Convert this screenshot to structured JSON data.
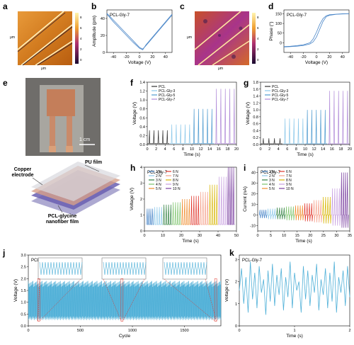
{
  "figure": {
    "panels": {
      "a": {
        "label": "a"
      },
      "b": {
        "label": "b",
        "title": "PCL-Gly-7",
        "xlabel": "Voltage (V)",
        "ylabel": "Amplitude (pm)"
      },
      "c": {
        "label": "c"
      },
      "d": {
        "label": "d",
        "title": "PCL-Gly-7",
        "xlabel": "Voltage (V)",
        "ylabel": "Phase (°)"
      },
      "e": {
        "label": "e",
        "scalebar": "1 cm",
        "layers": [
          "PU film",
          "Copper electrode",
          "PCL-glycine nanofiber film"
        ]
      },
      "f": {
        "label": "f",
        "xlabel": "Time (s)",
        "ylabel": "Voltage (V)"
      },
      "g": {
        "label": "g",
        "xlabel": "Time (s)",
        "ylabel": "Voltage (V)"
      },
      "h": {
        "label": "h",
        "title": "PCL-Gly-7",
        "xlabel": "Time (s)",
        "ylabel": "Voltage (V)"
      },
      "i": {
        "label": "i",
        "title": "PCL-Gly-7",
        "xlabel": "Time (s)",
        "ylabel": "Current (nA)"
      },
      "j": {
        "label": "j",
        "title": "PCL-Gly-7",
        "xlabel": "Cycle",
        "ylabel": "Voltage (V)"
      },
      "k": {
        "label": "k",
        "title": "PCL-Gly-7",
        "xlabel": "Time (s)",
        "ylabel": "Voltage (V)"
      }
    },
    "afm_scale_a": {
      "ticks": [
        "8",
        "6",
        "4",
        "2",
        "0"
      ],
      "axis": [
        "μm",
        "μm"
      ]
    },
    "afm_scale_c": {
      "ticks": [
        "8",
        "6",
        "4",
        "2",
        "0"
      ],
      "axis": [
        "μm",
        "μm"
      ]
    }
  },
  "chart_data": [
    {
      "id": "b",
      "type": "line",
      "title": "PCL-Gly-7",
      "xlabel": "Voltage (V)",
      "ylabel": "Amplitude (pm)",
      "xlim": [
        -50,
        50
      ],
      "ylim": [
        0,
        50
      ],
      "xticks": [
        "-40",
        "-20",
        "0",
        "20",
        "40"
      ],
      "yticks": [
        "0",
        "20",
        "40"
      ],
      "series": [
        {
          "color": "#4a86c8",
          "x": [
            -50,
            -40,
            -30,
            -20,
            -10,
            0,
            5,
            10,
            20,
            30,
            40,
            50
          ],
          "y": [
            46,
            38,
            30,
            22,
            14,
            6,
            4,
            8,
            17,
            26,
            35,
            44
          ]
        },
        {
          "color": "#4a86c8",
          "x": [
            -50,
            -40,
            -30,
            -20,
            -10,
            0,
            5,
            10,
            20,
            30,
            40,
            50
          ],
          "y": [
            45,
            36,
            28,
            20,
            12,
            5,
            3,
            9,
            18,
            27,
            36,
            45
          ]
        }
      ]
    },
    {
      "id": "d",
      "type": "line",
      "title": "PCL-Gly-7",
      "xlabel": "Voltage (V)",
      "ylabel": "Phase (°)",
      "xlim": [
        -50,
        50
      ],
      "ylim": [
        -50,
        170
      ],
      "xticks": [
        "-40",
        "-20",
        "0",
        "20",
        "40"
      ],
      "yticks": [
        "0",
        "50",
        "100",
        "150"
      ],
      "series": [
        {
          "color": "#4a86c8",
          "x": [
            -50,
            -40,
            -30,
            -20,
            -10,
            -5,
            0,
            5,
            10,
            15,
            20,
            30,
            40,
            50
          ],
          "y": [
            -20,
            -18,
            -15,
            -10,
            0,
            20,
            55,
            95,
            125,
            140,
            145,
            148,
            150,
            150
          ]
        },
        {
          "color": "#4a86c8",
          "x": [
            -50,
            -40,
            -30,
            -20,
            -10,
            -5,
            0,
            5,
            10,
            15,
            20,
            30,
            40,
            50
          ],
          "y": [
            -22,
            -20,
            -18,
            -14,
            -6,
            5,
            30,
            70,
            110,
            135,
            142,
            147,
            149,
            150
          ]
        }
      ]
    },
    {
      "id": "f",
      "type": "line",
      "xlabel": "Time (s)",
      "ylabel": "Voltage (V)",
      "xlim": [
        0,
        20
      ],
      "ylim": [
        0,
        1.4
      ],
      "xticks": [
        "0",
        "2",
        "4",
        "6",
        "8",
        "10",
        "12",
        "14",
        "16",
        "18",
        "20"
      ],
      "yticks": [
        "0.0",
        "0.2",
        "0.4",
        "0.6",
        "0.8",
        "1.0",
        "1.2",
        "1.4"
      ],
      "series": [
        {
          "name": "PCL",
          "color": "#333333",
          "t0": 0.0,
          "t1": 5.0,
          "peak": 0.32,
          "n": 5
        },
        {
          "name": "PCL-Gly-3",
          "color": "#8cc8ea",
          "t0": 5.0,
          "t1": 10.0,
          "peak": 0.45,
          "n": 5
        },
        {
          "name": "PCL-Gly-5",
          "color": "#4f9bd0",
          "t0": 10.0,
          "t1": 15.0,
          "peak": 0.8,
          "n": 5
        },
        {
          "name": "PCL-Gly-7",
          "color": "#b08ad8",
          "t0": 15.0,
          "t1": 20.0,
          "peak": 1.25,
          "n": 5
        }
      ]
    },
    {
      "id": "g",
      "type": "line",
      "xlabel": "Time (s)",
      "ylabel": "Voltage (V)",
      "xlim": [
        0,
        20
      ],
      "ylim": [
        0,
        1.8
      ],
      "xticks": [
        "0",
        "2",
        "4",
        "6",
        "8",
        "10",
        "12",
        "14",
        "16",
        "18",
        "20"
      ],
      "yticks": [
        "0.0",
        "0.2",
        "0.4",
        "0.6",
        "0.8",
        "1.0",
        "1.2",
        "1.4",
        "1.6",
        "1.8"
      ],
      "series": [
        {
          "name": "PCL",
          "color": "#333333",
          "t0": 0.0,
          "t1": 5.0,
          "peak": 0.18,
          "n": 4
        },
        {
          "name": "PCL-Gly-3",
          "color": "#8cc8ea",
          "t0": 5.0,
          "t1": 10.0,
          "peak": 0.75,
          "n": 5
        },
        {
          "name": "PCL-Gly-5",
          "color": "#4f9bd0",
          "t0": 10.0,
          "t1": 15.0,
          "peak": 1.0,
          "n": 5
        },
        {
          "name": "PCL-Gly-7",
          "color": "#b08ad8",
          "t0": 15.0,
          "t1": 20.0,
          "peak": 1.55,
          "n": 5
        }
      ]
    },
    {
      "id": "h",
      "type": "line",
      "title": "PCL-Gly-7",
      "xlabel": "Time (s)",
      "ylabel": "Voltage (V)",
      "xlim": [
        0,
        50
      ],
      "ylim": [
        0,
        4
      ],
      "xticks": [
        "0",
        "10",
        "20",
        "30",
        "40",
        "50"
      ],
      "yticks": [
        "0",
        "1",
        "2",
        "3",
        "4"
      ],
      "series": [
        {
          "name": "1 N",
          "color": "#4a86c8",
          "t0": 1,
          "t1": 5,
          "peak": 1.4
        },
        {
          "name": "2 N",
          "color": "#8cc8ea",
          "t0": 5,
          "t1": 10,
          "peak": 1.5
        },
        {
          "name": "3 N",
          "color": "#2f7f3f",
          "t0": 10,
          "t1": 15,
          "peak": 1.65
        },
        {
          "name": "4 N",
          "color": "#7ac36a",
          "t0": 15,
          "t1": 20,
          "peak": 1.8
        },
        {
          "name": "5 N",
          "color": "#f08b2c",
          "t0": 20,
          "t1": 25,
          "peak": 2.0
        },
        {
          "name": "6 N",
          "color": "#e0352b",
          "t0": 25,
          "t1": 30,
          "peak": 2.2
        },
        {
          "name": "7 N",
          "color": "#f5a08a",
          "t0": 30,
          "t1": 35,
          "peak": 2.45
        },
        {
          "name": "8 N",
          "color": "#d7b400",
          "t0": 35,
          "t1": 40,
          "peak": 2.9
        },
        {
          "name": "9 N",
          "color": "#c79fe0",
          "t0": 40,
          "t1": 45,
          "peak": 3.4
        },
        {
          "name": "10 N",
          "color": "#7a3fa0",
          "t0": 45,
          "t1": 49,
          "peak": 4.0
        }
      ]
    },
    {
      "id": "i",
      "type": "line",
      "title": "PCL-Gly-7",
      "xlabel": "Time (s)",
      "ylabel": "Current (nA)",
      "xlim": [
        0,
        35
      ],
      "ylim": [
        -15,
        45
      ],
      "xticks": [
        "0",
        "5",
        "10",
        "15",
        "20",
        "25",
        "30",
        "35"
      ],
      "yticks": [
        "-10",
        "0",
        "10",
        "20",
        "30",
        "40"
      ],
      "series": [
        {
          "name": "1 N",
          "color": "#4a86c8",
          "t0": 0.5,
          "t1": 3.5,
          "peak": 5,
          "trough": -3
        },
        {
          "name": "2 N",
          "color": "#8cc8ea",
          "t0": 3.5,
          "t1": 7,
          "peak": 6,
          "trough": -4
        },
        {
          "name": "3 N",
          "color": "#2f7f3f",
          "t0": 7,
          "t1": 10.5,
          "peak": 7,
          "trough": -4
        },
        {
          "name": "4 N",
          "color": "#7ac36a",
          "t0": 10.5,
          "t1": 14,
          "peak": 8,
          "trough": -5
        },
        {
          "name": "5 N",
          "color": "#f08b2c",
          "t0": 14,
          "t1": 17.5,
          "peak": 9,
          "trough": -5
        },
        {
          "name": "6 N",
          "color": "#e0352b",
          "t0": 17.5,
          "t1": 21,
          "peak": 11,
          "trough": -6
        },
        {
          "name": "7 N",
          "color": "#f5a08a",
          "t0": 21,
          "t1": 24.5,
          "peak": 14,
          "trough": -7
        },
        {
          "name": "8 N",
          "color": "#d7b400",
          "t0": 24.5,
          "t1": 28,
          "peak": 17,
          "trough": -8
        },
        {
          "name": "9 N",
          "color": "#c79fe0",
          "t0": 28,
          "t1": 31.5,
          "peak": 25,
          "trough": -10
        },
        {
          "name": "10 N",
          "color": "#7a3fa0",
          "t0": 31.5,
          "t1": 34.5,
          "peak": 40,
          "trough": -12
        }
      ]
    },
    {
      "id": "j",
      "type": "line",
      "title": "PCL-Gly-7",
      "xlabel": "Cycle",
      "ylabel": "Voltage (V)",
      "xlim": [
        0,
        1850
      ],
      "ylim": [
        0,
        3.0
      ],
      "xticks": [
        "0",
        "500",
        "1000",
        "1500"
      ],
      "yticks": [
        "0.0",
        "0.5",
        "1.0",
        "1.5",
        "2.0",
        "2.5",
        "3.0"
      ],
      "band": {
        "low": 0.25,
        "high": 1.9,
        "color": "#4fb0d8"
      },
      "insets_at_cycles": [
        100,
        900,
        1800
      ]
    },
    {
      "id": "k",
      "type": "line",
      "title": "PCL-Gly-7",
      "xlabel": "Time (s)",
      "ylabel": "Voltage (V)",
      "xlim": [
        0,
        2
      ],
      "ylim": [
        0,
        3.2
      ],
      "xticks": [
        "0",
        "1",
        "2"
      ],
      "yticks": [
        "0",
        "1",
        "2",
        "3"
      ],
      "series": [
        {
          "color": "#4fb0d8",
          "x": [
            0.0,
            0.04,
            0.08,
            0.12,
            0.16,
            0.2,
            0.24,
            0.28,
            0.32,
            0.36,
            0.4,
            0.44,
            0.48,
            0.52,
            0.56,
            0.6,
            0.64,
            0.68,
            0.72,
            0.76,
            0.8,
            0.84,
            0.88,
            0.92,
            0.96,
            1.0,
            1.04,
            1.08,
            1.12,
            1.16,
            1.2,
            1.24,
            1.28,
            1.32,
            1.36,
            1.4,
            1.44,
            1.48,
            1.52,
            1.56,
            1.6,
            1.64,
            1.68,
            1.72,
            1.76,
            1.8,
            1.84,
            1.88,
            1.92,
            1.96,
            2.0
          ],
          "y": [
            1.6,
            2.6,
            1.0,
            2.2,
            0.6,
            2.9,
            1.2,
            2.4,
            0.8,
            2.7,
            1.5,
            2.1,
            0.5,
            2.5,
            1.1,
            2.8,
            0.9,
            2.3,
            1.4,
            2.6,
            0.7,
            2.2,
            1.3,
            2.9,
            0.8,
            2.4,
            1.6,
            2.0,
            0.6,
            2.7,
            1.2,
            2.5,
            0.9,
            2.3,
            1.5,
            2.8,
            0.7,
            2.1,
            1.4,
            2.6,
            0.8,
            2.4,
            1.1,
            2.9,
            0.6,
            2.2,
            1.5,
            2.5,
            0.9,
            2.7,
            1.3
          ]
        }
      ]
    }
  ]
}
